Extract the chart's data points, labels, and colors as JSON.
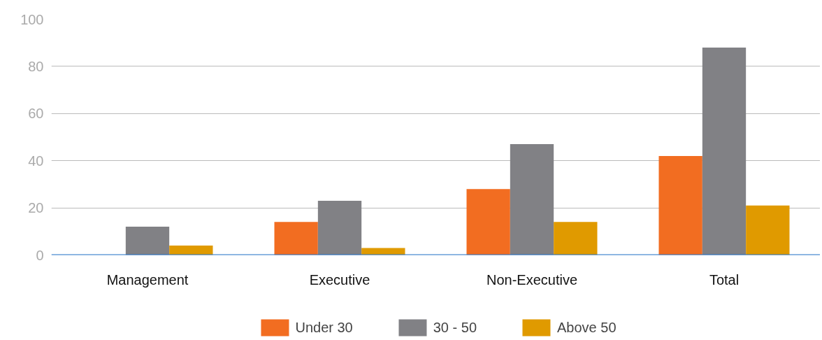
{
  "chart_data": {
    "type": "bar",
    "categories": [
      "Management",
      "Executive",
      "Non-Executive",
      "Total"
    ],
    "series": [
      {
        "name": "Under 30",
        "color": "#f26d21",
        "values": [
          0,
          14,
          28,
          42
        ]
      },
      {
        "name": "30 - 50",
        "color": "#818185",
        "values": [
          12,
          23,
          47,
          88
        ]
      },
      {
        "name": "Above 50",
        "color": "#e09a00",
        "values": [
          4,
          3,
          14,
          21
        ]
      }
    ],
    "ylim": [
      0,
      100
    ],
    "yticks": [
      0,
      20,
      40,
      60,
      80,
      100
    ],
    "grid": "y",
    "legend": "bottom"
  }
}
